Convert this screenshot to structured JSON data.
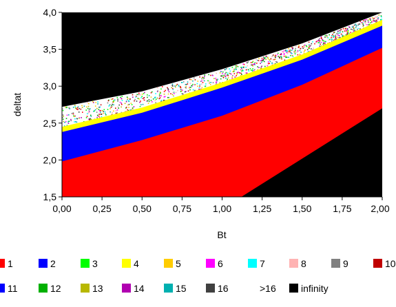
{
  "chart_data": {
    "type": "area",
    "title": "",
    "xlabel": "Bt",
    "ylabel": "deltat",
    "xlim": [
      0,
      2
    ],
    "ylim": [
      1.5,
      4.0
    ],
    "x_ticks": [
      "0,00",
      "0,25",
      "0,50",
      "0,75",
      "1,00",
      "1,25",
      "1,50",
      "1,75",
      "2,00"
    ],
    "y_ticks": [
      "1,5",
      "2,0",
      "2,5",
      "3,0",
      "3,5",
      "4,0"
    ],
    "grid": false,
    "background_color": "#000000",
    "region_boundaries": {
      "infinity_lower_right": {
        "x": [
          1.12,
          2.0
        ],
        "y": [
          1.5,
          2.7
        ]
      },
      "red_upper": {
        "x": [
          0.0,
          0.5,
          1.0,
          1.5,
          2.0
        ],
        "y": [
          1.98,
          2.27,
          2.6,
          3.02,
          3.52
        ]
      },
      "blue_upper": {
        "x": [
          0.0,
          0.5,
          1.0,
          1.5,
          2.0
        ],
        "y": [
          2.38,
          2.64,
          2.98,
          3.36,
          3.82
        ]
      },
      "yellow_upper": {
        "x": [
          0.0,
          0.5,
          1.0,
          1.5,
          2.0
        ],
        "y": [
          2.45,
          2.71,
          3.05,
          3.43,
          3.9
        ]
      },
      "speckle_upper": {
        "x": [
          0.0,
          0.5,
          1.0,
          1.5,
          2.0
        ],
        "y": [
          2.72,
          2.93,
          3.23,
          3.58,
          4.0
        ]
      }
    },
    "legend_position": "bottom",
    "legend": [
      {
        "label": "1",
        "color": "#ff0000"
      },
      {
        "label": "2",
        "color": "#0000ff"
      },
      {
        "label": "3",
        "color": "#00ff00"
      },
      {
        "label": "4",
        "color": "#ffff00"
      },
      {
        "label": "5",
        "color": "#ffcc00"
      },
      {
        "label": "6",
        "color": "#ff00ff"
      },
      {
        "label": "7",
        "color": "#00ffff"
      },
      {
        "label": "8",
        "color": "#ffb3b3"
      },
      {
        "label": "9",
        "color": "#808080"
      },
      {
        "label": "10",
        "color": "#c00000"
      },
      {
        "label": "11",
        "color": "#0000ff"
      },
      {
        "label": "12",
        "color": "#00b000"
      },
      {
        "label": "13",
        "color": "#b8b800"
      },
      {
        "label": "14",
        "color": "#b000b0"
      },
      {
        "label": "15",
        "color": "#00b0b0"
      },
      {
        "label": "16",
        "color": "#404040"
      },
      {
        "label": ">16",
        "color": ""
      },
      {
        "label": "infinity",
        "color": "#000000"
      }
    ]
  }
}
